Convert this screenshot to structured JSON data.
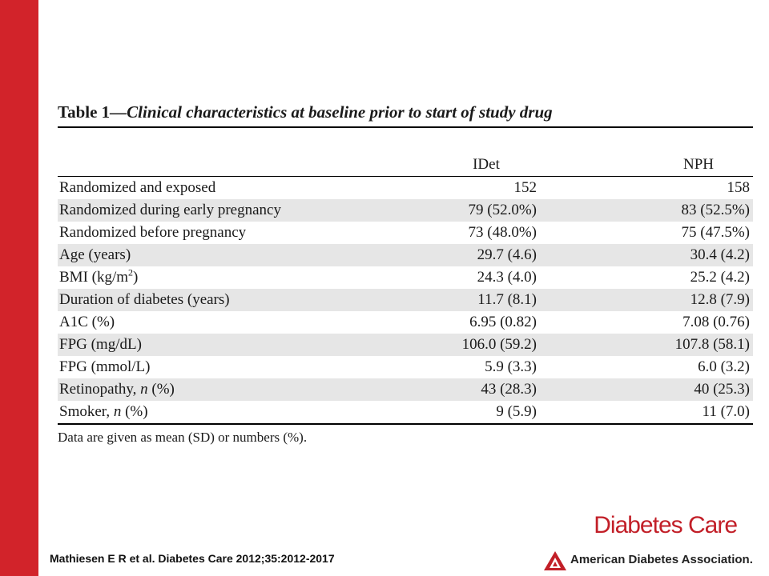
{
  "table": {
    "label": "Table 1",
    "dash": "—",
    "caption": "Clinical characteristics at baseline prior to start of study drug",
    "columns": [
      "IDet",
      "NPH"
    ],
    "rows": [
      {
        "label": "Randomized and exposed",
        "idet": "152",
        "nph": "158"
      },
      {
        "label": "Randomized during early pregnancy",
        "idet": "79 (52.0%)",
        "nph": "83 (52.5%)"
      },
      {
        "label": "Randomized before pregnancy",
        "idet": "73 (48.0%)",
        "nph": "75 (47.5%)"
      },
      {
        "label": "Age (years)",
        "idet": "29.7 (4.6)",
        "nph": "30.4 (4.2)"
      },
      {
        "label_prefix": "BMI (kg/m",
        "label_sup": "2",
        "label_suffix": ")",
        "idet": "24.3 (4.0)",
        "nph": "25.2 (4.2)"
      },
      {
        "label": "Duration of diabetes (years)",
        "idet": "11.7 (8.1)",
        "nph": "12.8 (7.9)"
      },
      {
        "label": "A1C (%)",
        "idet": "6.95 (0.82)",
        "nph": "7.08 (0.76)"
      },
      {
        "label": "FPG (mg/dL)",
        "idet": "106.0 (59.2)",
        "nph": "107.8 (58.1)"
      },
      {
        "label": "FPG (mmol/L)",
        "idet": "5.9 (3.3)",
        "nph": "6.0 (3.2)"
      },
      {
        "label_prefix": "Retinopathy, ",
        "label_italic": "n",
        "label_suffix": " (%)",
        "idet": "43 (28.3)",
        "nph": "40 (25.3)"
      },
      {
        "label_prefix": "Smoker, ",
        "label_italic": "n",
        "label_suffix": " (%)",
        "idet": "9 (5.9)",
        "nph": "11 (7.0)"
      }
    ],
    "footnote": "Data are given as mean (SD) or numbers (%)."
  },
  "citation": "Mathiesen E R et al. Diabetes Care 2012;35:2012-2017",
  "journal_logo": "Diabetes Care",
  "publisher_logo": "American Diabetes Association.",
  "colors": {
    "accent_red": "#d2232a",
    "row_shade": "#e6e6e6"
  }
}
